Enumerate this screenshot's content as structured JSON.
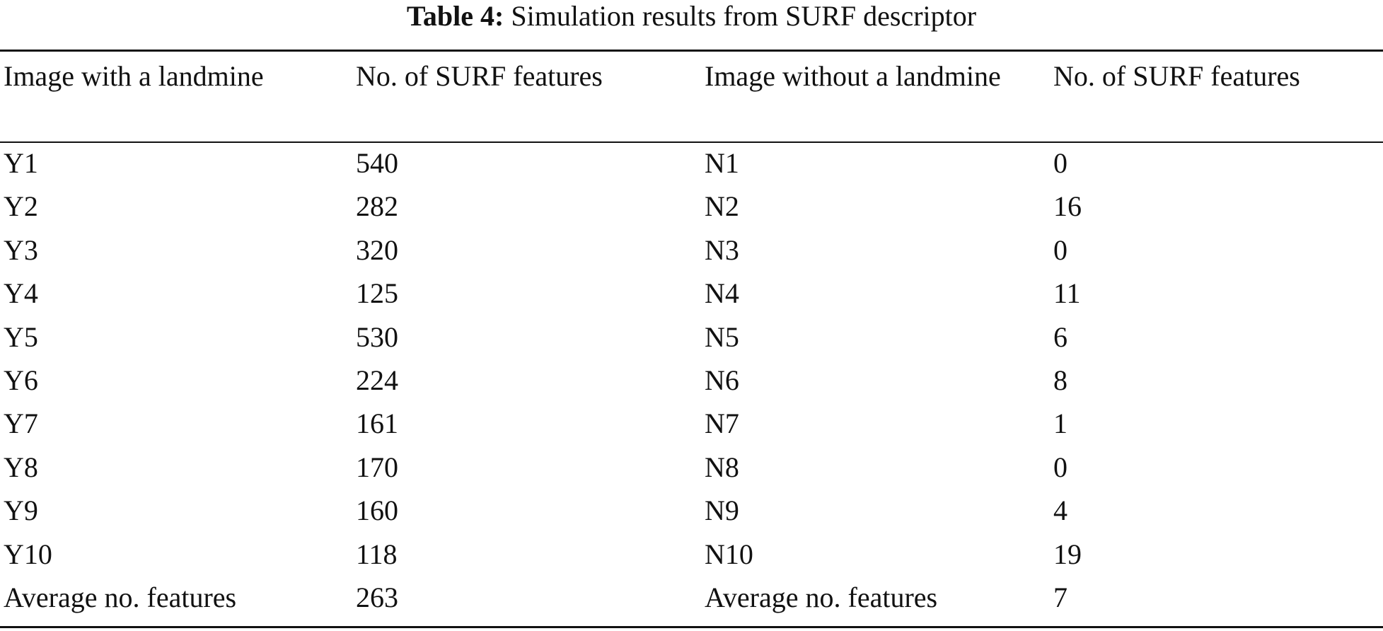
{
  "caption": {
    "label": "Table 4:",
    "text": "Simulation results from SURF descriptor"
  },
  "table": {
    "headers": [
      "Image with a landmine",
      "No. of SURF features",
      "Image without a landmine",
      "No. of SURF features"
    ],
    "rows": [
      [
        "Y1",
        "540",
        "N1",
        "0"
      ],
      [
        "Y2",
        "282",
        "N2",
        "16"
      ],
      [
        "Y3",
        "320",
        "N3",
        "0"
      ],
      [
        "Y4",
        "125",
        "N4",
        "11"
      ],
      [
        "Y5",
        "530",
        "N5",
        "6"
      ],
      [
        "Y6",
        "224",
        "N6",
        "8"
      ],
      [
        "Y7",
        "161",
        "N7",
        "1"
      ],
      [
        "Y8",
        "170",
        "N8",
        "0"
      ],
      [
        "Y9",
        "160",
        "N9",
        "4"
      ],
      [
        "Y10",
        "118",
        "N10",
        "19"
      ],
      [
        "Average no. features",
        "263",
        "Average no. features",
        "7"
      ]
    ]
  }
}
